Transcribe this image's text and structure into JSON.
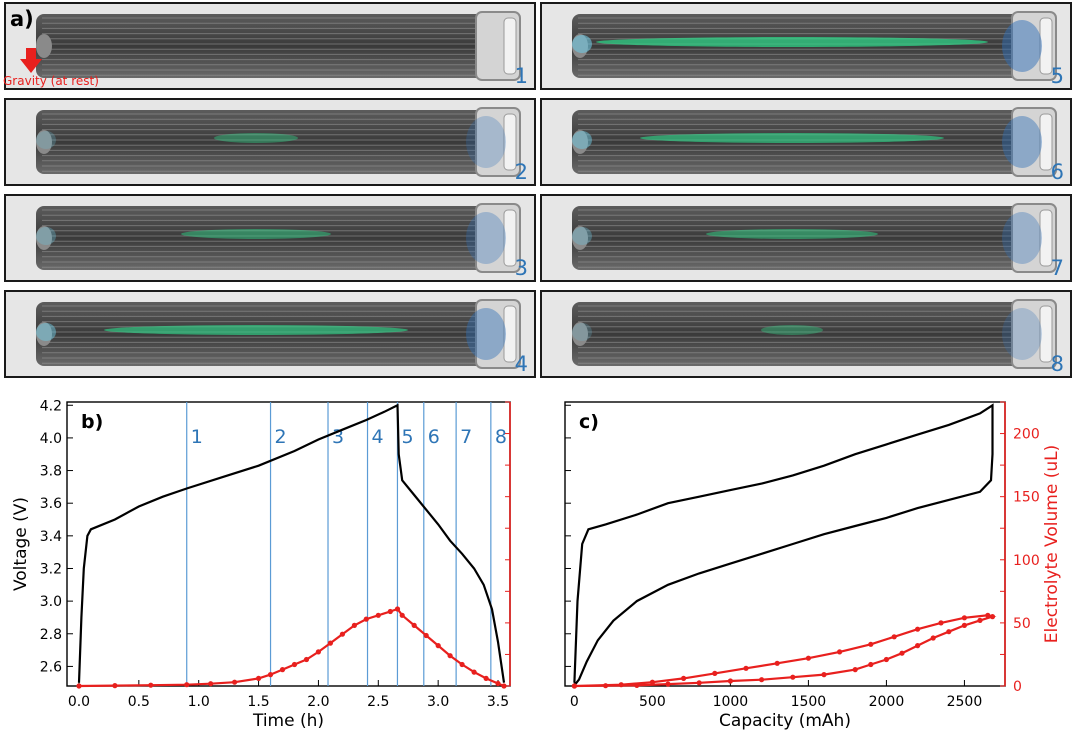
{
  "panel_a": {
    "letter": "a)",
    "gravity_label": "Gravity (at rest)",
    "frame_numbers": [
      "1",
      "2",
      "3",
      "4",
      "5",
      "6",
      "7",
      "8"
    ],
    "electrolyte_level": [
      0.0,
      0.1,
      0.25,
      0.6,
      0.8,
      0.6,
      0.3,
      0.05
    ],
    "colors": {
      "electrolyte": "#2fd98a",
      "border": "#1a1a1a",
      "number": "#2e75b6",
      "gravity": "#e8201e"
    }
  },
  "chart_data": [
    {
      "type": "line",
      "panel_label": "b)",
      "xlabel": "Time (h)",
      "ylabel": "Voltage (V)",
      "xlim": [
        -0.1,
        3.6
      ],
      "ylim": [
        2.48,
        4.22
      ],
      "x_ticks": [
        "0.0",
        "0.5",
        "1.0",
        "1.5",
        "2.0",
        "2.5",
        "3.0",
        "3.5"
      ],
      "y_ticks": [
        "2.6",
        "2.8",
        "3.0",
        "3.2",
        "3.4",
        "3.6",
        "3.8",
        "4.0",
        "4.2"
      ],
      "right_axis": {
        "color": "#e8201e",
        "ylim": [
          0,
          225
        ]
      },
      "markers": [
        {
          "label": "1",
          "x": 0.9
        },
        {
          "label": "2",
          "x": 1.6
        },
        {
          "label": "3",
          "x": 2.08
        },
        {
          "label": "4",
          "x": 2.41
        },
        {
          "label": "5",
          "x": 2.66
        },
        {
          "label": "6",
          "x": 2.88
        },
        {
          "label": "7",
          "x": 3.15
        },
        {
          "label": "8",
          "x": 3.44
        }
      ],
      "series": [
        {
          "color": "#000000",
          "axis": "left",
          "points": [
            [
              0.0,
              2.5
            ],
            [
              0.02,
              2.9
            ],
            [
              0.04,
              3.2
            ],
            [
              0.07,
              3.4
            ],
            [
              0.1,
              3.44
            ],
            [
              0.3,
              3.5
            ],
            [
              0.5,
              3.58
            ],
            [
              0.7,
              3.64
            ],
            [
              0.9,
              3.69
            ],
            [
              1.2,
              3.76
            ],
            [
              1.5,
              3.83
            ],
            [
              1.8,
              3.92
            ],
            [
              2.0,
              3.99
            ],
            [
              2.2,
              4.05
            ],
            [
              2.4,
              4.11
            ],
            [
              2.55,
              4.16
            ],
            [
              2.66,
              4.2
            ],
            [
              2.67,
              3.9
            ],
            [
              2.7,
              3.74
            ],
            [
              2.8,
              3.65
            ],
            [
              2.9,
              3.56
            ],
            [
              3.0,
              3.47
            ],
            [
              3.1,
              3.37
            ],
            [
              3.2,
              3.29
            ],
            [
              3.3,
              3.2
            ],
            [
              3.38,
              3.1
            ],
            [
              3.45,
              2.95
            ],
            [
              3.5,
              2.75
            ],
            [
              3.53,
              2.6
            ],
            [
              3.55,
              2.5
            ]
          ]
        },
        {
          "color": "#e8201e",
          "axis": "right",
          "marker": "circle",
          "points": [
            [
              0.0,
              0
            ],
            [
              0.3,
              0.3
            ],
            [
              0.6,
              0.6
            ],
            [
              0.9,
              1
            ],
            [
              1.1,
              1.8
            ],
            [
              1.3,
              3
            ],
            [
              1.5,
              6
            ],
            [
              1.6,
              9
            ],
            [
              1.7,
              13
            ],
            [
              1.8,
              17
            ],
            [
              1.9,
              21
            ],
            [
              2.0,
              27
            ],
            [
              2.1,
              34
            ],
            [
              2.2,
              41
            ],
            [
              2.3,
              48
            ],
            [
              2.4,
              53
            ],
            [
              2.5,
              56
            ],
            [
              2.6,
              59
            ],
            [
              2.66,
              61
            ],
            [
              2.7,
              56
            ],
            [
              2.8,
              48
            ],
            [
              2.9,
              40
            ],
            [
              3.0,
              32
            ],
            [
              3.1,
              24
            ],
            [
              3.2,
              17
            ],
            [
              3.3,
              11
            ],
            [
              3.4,
              6
            ],
            [
              3.5,
              2
            ],
            [
              3.55,
              0
            ]
          ]
        }
      ]
    },
    {
      "type": "line",
      "panel_label": "c)",
      "xlabel": "Capacity (mAh)",
      "ylabel_right": "Electrolyte Volume (uL)",
      "xlim": [
        -60,
        2760
      ],
      "ylim": [
        2.48,
        4.22
      ],
      "x_ticks": [
        "0",
        "500",
        "1000",
        "1500",
        "2000",
        "2500"
      ],
      "right_axis": {
        "color": "#e8201e",
        "ylim": [
          0,
          225
        ],
        "ticks": [
          "0",
          "50",
          "100",
          "150",
          "200"
        ]
      },
      "series": [
        {
          "color": "#000000",
          "axis": "left",
          "points": [
            [
              0,
              2.5
            ],
            [
              20,
              3.0
            ],
            [
              50,
              3.35
            ],
            [
              90,
              3.44
            ],
            [
              200,
              3.47
            ],
            [
              400,
              3.53
            ],
            [
              600,
              3.6
            ],
            [
              800,
              3.64
            ],
            [
              1000,
              3.68
            ],
            [
              1200,
              3.72
            ],
            [
              1400,
              3.77
            ],
            [
              1600,
              3.83
            ],
            [
              1800,
              3.9
            ],
            [
              2000,
              3.96
            ],
            [
              2200,
              4.02
            ],
            [
              2400,
              4.08
            ],
            [
              2600,
              4.15
            ],
            [
              2680,
              4.2
            ],
            [
              2680,
              3.9
            ],
            [
              2670,
              3.74
            ],
            [
              2600,
              3.67
            ],
            [
              2400,
              3.62
            ],
            [
              2200,
              3.57
            ],
            [
              2000,
              3.51
            ],
            [
              1800,
              3.46
            ],
            [
              1600,
              3.41
            ],
            [
              1400,
              3.35
            ],
            [
              1200,
              3.29
            ],
            [
              1000,
              3.23
            ],
            [
              800,
              3.17
            ],
            [
              600,
              3.1
            ],
            [
              400,
              3.0
            ],
            [
              250,
              2.88
            ],
            [
              150,
              2.76
            ],
            [
              80,
              2.63
            ],
            [
              30,
              2.52
            ],
            [
              5,
              2.49
            ]
          ]
        },
        {
          "color": "#e8201e",
          "axis": "right",
          "marker": "circle",
          "points": [
            [
              0,
              0
            ],
            [
              300,
              1
            ],
            [
              500,
              3
            ],
            [
              700,
              6
            ],
            [
              900,
              10
            ],
            [
              1100,
              14
            ],
            [
              1300,
              18
            ],
            [
              1500,
              22
            ],
            [
              1700,
              27
            ],
            [
              1900,
              33
            ],
            [
              2050,
              39
            ],
            [
              2200,
              45
            ],
            [
              2350,
              50
            ],
            [
              2500,
              54
            ],
            [
              2650,
              56
            ],
            [
              2680,
              55
            ],
            [
              2600,
              52
            ],
            [
              2500,
              48
            ],
            [
              2400,
              43
            ],
            [
              2300,
              38
            ],
            [
              2200,
              32
            ],
            [
              2100,
              26
            ],
            [
              2000,
              21
            ],
            [
              1900,
              17
            ],
            [
              1800,
              13
            ],
            [
              1600,
              9
            ],
            [
              1400,
              7
            ],
            [
              1200,
              5
            ],
            [
              1000,
              4
            ],
            [
              800,
              2.5
            ],
            [
              600,
              1.5
            ],
            [
              400,
              0.5
            ],
            [
              200,
              0.2
            ],
            [
              0,
              0
            ]
          ]
        }
      ]
    }
  ]
}
